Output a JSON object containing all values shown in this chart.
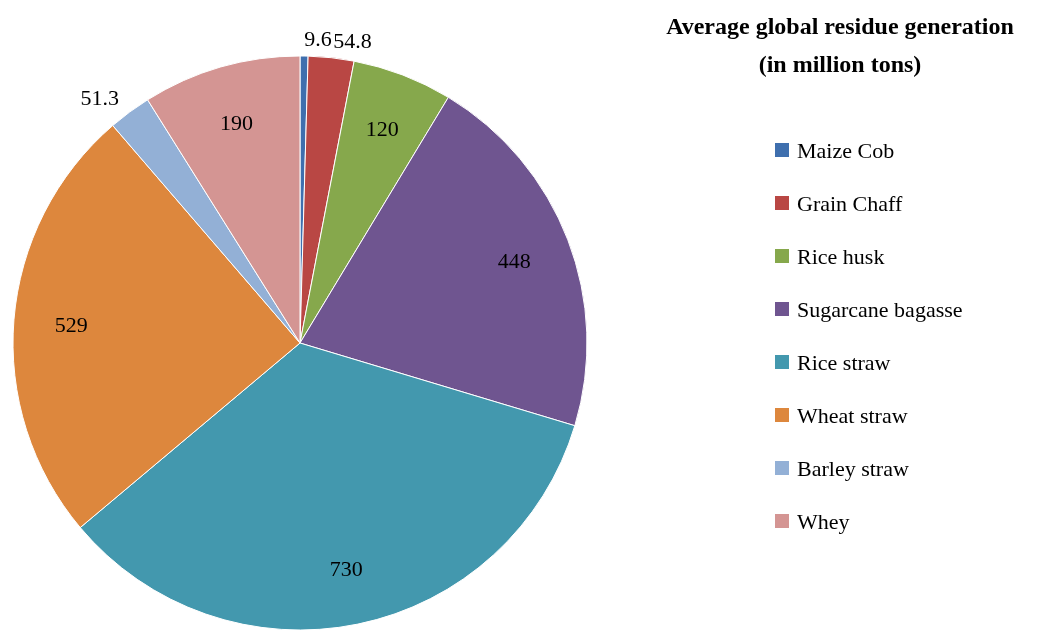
{
  "chart_data": {
    "type": "pie",
    "title": "Average global residue generation",
    "subtitle": "(in million tons)",
    "categories": [
      "Maize Cob",
      "Grain Chaff",
      "Rice husk",
      "Sugarcane bagasse",
      "Rice straw",
      "Wheat straw",
      "Barley straw",
      "Whey"
    ],
    "values": [
      9.6,
      54.8,
      120,
      448,
      730,
      529,
      51.3,
      190
    ],
    "colors": [
      "#3f6fae",
      "#b94744",
      "#86a84c",
      "#6f5590",
      "#4398ae",
      "#dd873d",
      "#93b0d6",
      "#d49593"
    ],
    "data_labels": true,
    "legend": "right"
  }
}
